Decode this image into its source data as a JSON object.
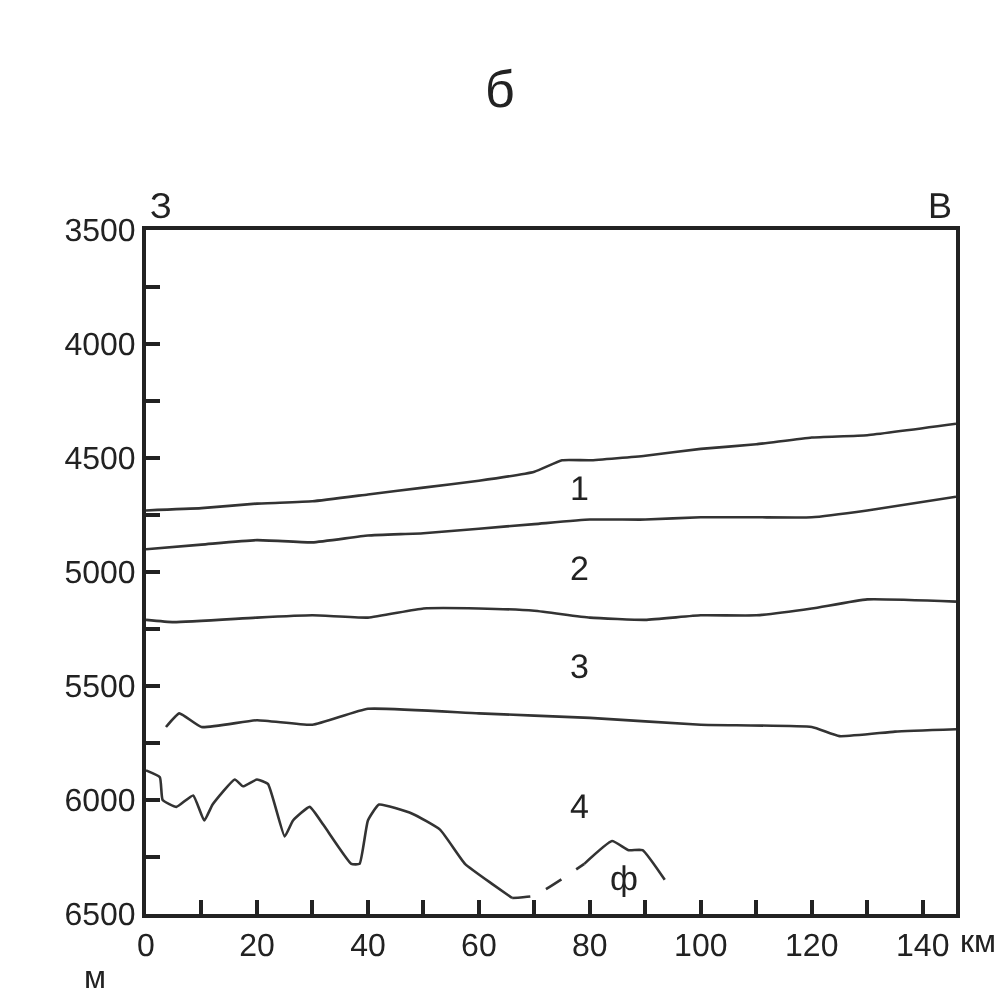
{
  "chart_data": {
    "type": "line",
    "title": "б",
    "xlabel": "км",
    "ylabel": "м",
    "xlim": [
      0,
      146
    ],
    "ylim": [
      6500,
      3500
    ],
    "xticks": [
      0,
      20,
      40,
      60,
      80,
      100,
      120,
      140,
      {
        "value": 10,
        "label": null
      },
      {
        "value": 30,
        "label": null
      },
      {
        "value": 50,
        "label": null
      },
      {
        "value": 70,
        "label": null
      },
      {
        "value": 90,
        "label": null
      },
      {
        "value": 110,
        "label": null
      },
      {
        "value": 130,
        "label": null
      }
    ],
    "yticks": [
      3500,
      4000,
      4500,
      5000,
      5500,
      6000,
      6500,
      {
        "value": 3750,
        "label": null
      },
      {
        "value": 4250,
        "label": null
      },
      {
        "value": 4750,
        "label": null
      },
      {
        "value": 5250,
        "label": null
      },
      {
        "value": 5750,
        "label": null
      },
      {
        "value": 6250,
        "label": null
      }
    ],
    "marker": "none",
    "series": [
      {
        "color": "#333333",
        "line_style": "solid",
        "x": [
          0,
          10,
          20,
          30,
          40,
          50,
          60,
          70,
          75,
          80,
          90,
          100,
          110,
          120,
          130,
          146
        ],
        "values": [
          4730,
          4720,
          4700,
          4690,
          4660,
          4630,
          4600,
          4560,
          4510,
          4510,
          4490,
          4460,
          4440,
          4410,
          4400,
          4350
        ]
      },
      {
        "color": "#333333",
        "line_style": "solid",
        "x": [
          0,
          10,
          20,
          30,
          40,
          50,
          60,
          70,
          80,
          90,
          100,
          110,
          120,
          130,
          146
        ],
        "values": [
          4900,
          4880,
          4860,
          4870,
          4840,
          4830,
          4810,
          4790,
          4770,
          4770,
          4760,
          4760,
          4760,
          4730,
          4670
        ]
      },
      {
        "color": "#333333",
        "line_style": "solid",
        "x": [
          0,
          5,
          20,
          30,
          40,
          50,
          60,
          70,
          80,
          90,
          100,
          110,
          120,
          130,
          146
        ],
        "values": [
          5210,
          5220,
          5200,
          5190,
          5200,
          5160,
          5160,
          5170,
          5200,
          5210,
          5190,
          5190,
          5160,
          5120,
          5130
        ]
      },
      {
        "color": "#333333",
        "line_style": "solid",
        "x": [
          3.6,
          6,
          10,
          20,
          30,
          40,
          60,
          80,
          100,
          120,
          125,
          135,
          146
        ],
        "values": [
          5680,
          5620,
          5680,
          5650,
          5670,
          5600,
          5620,
          5640,
          5670,
          5680,
          5720,
          5700,
          5690
        ]
      },
      {
        "color": "#333333",
        "line_style": "solid",
        "x": [
          0,
          2.5,
          3,
          5.5,
          8.5,
          10.5,
          12,
          16,
          17.5,
          20,
          22,
          25,
          26.5,
          29.5,
          32,
          37,
          38.5,
          40,
          42,
          48,
          53,
          57.5,
          62.5,
          66
        ],
        "values": [
          5870,
          5900,
          6000,
          6030,
          5980,
          6090,
          6020,
          5910,
          5940,
          5910,
          5930,
          6160,
          6090,
          6030,
          6110,
          6280,
          6280,
          6090,
          6020,
          6060,
          6130,
          6280,
          6370,
          6430
        ]
      },
      {
        "color": "#333333",
        "line_style": "dashed",
        "x": [
          66,
          70,
          76,
          79
        ],
        "values": [
          6430,
          6420,
          6330,
          6280
        ]
      },
      {
        "color": "#333333",
        "line_style": "solid",
        "x": [
          79,
          84,
          87,
          89.5,
          93.5
        ],
        "values": [
          6280,
          6180,
          6220,
          6220,
          6350
        ]
      }
    ],
    "annotations": [
      "З",
      "В",
      "1",
      "2",
      "3",
      "4",
      "ф"
    ]
  }
}
